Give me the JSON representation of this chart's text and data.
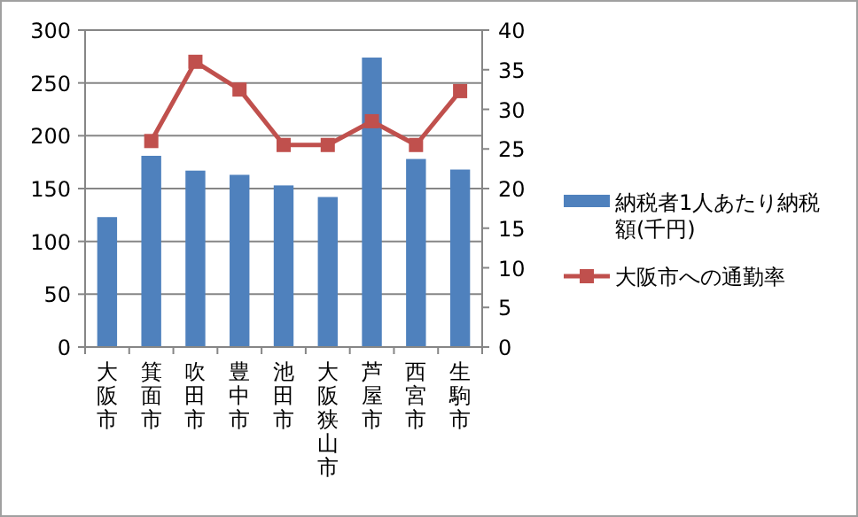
{
  "chart_data": {
    "type": "bar",
    "categories": [
      "大阪市",
      "箕面市",
      "吹田市",
      "豊中市",
      "池田市",
      "大阪狭山市",
      "芦屋市",
      "西宮市",
      "生駒市"
    ],
    "series": [
      {
        "name": "納税者1人あたり納税額(千円)",
        "color": "#4f81bd",
        "values": [
          123,
          181,
          167,
          163,
          153,
          142,
          274,
          178,
          168
        ]
      },
      {
        "name": "大阪市への通勤率",
        "type": "line",
        "axis": "y2",
        "color": "#c0504d",
        "values": [
          null,
          26,
          36,
          32.5,
          25.5,
          25.5,
          28.5,
          25.5,
          32.3
        ]
      }
    ],
    "ylim": [
      0,
      300
    ],
    "yticks": [
      0,
      50,
      100,
      150,
      200,
      250,
      300
    ],
    "y2lim": [
      0,
      40
    ],
    "y2ticks": [
      0,
      5,
      10,
      15,
      20,
      25,
      30,
      35,
      40
    ],
    "grid": "y",
    "legend": "right",
    "marker": "square",
    "line_style": "solid"
  }
}
